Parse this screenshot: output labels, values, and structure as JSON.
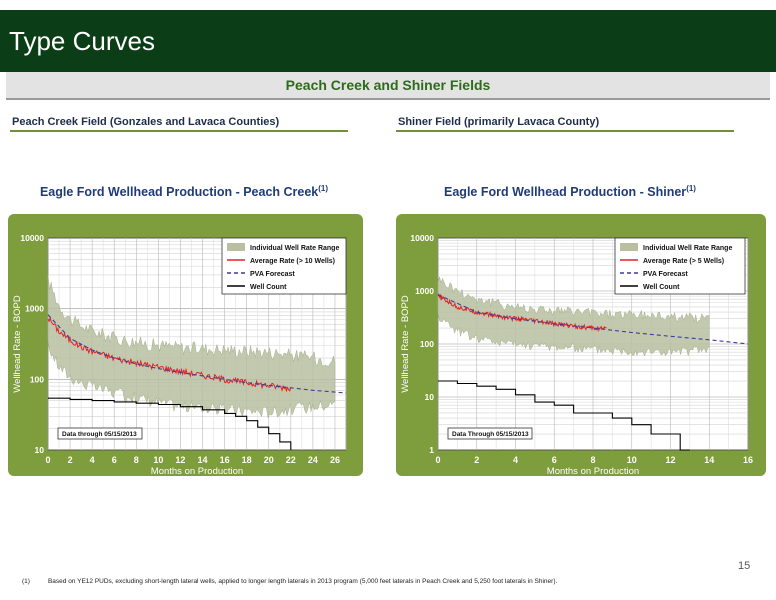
{
  "header": {
    "title": "Type Curves"
  },
  "banner": {
    "text": "Peach Creek and Shiner Fields"
  },
  "left": {
    "field_heading": "Peach Creek Field (Gonzales and Lavaca Counties)",
    "chart_title": "Eagle Ford Wellhead Production - Peach Creek",
    "title_superscript": "(1)"
  },
  "right": {
    "field_heading": "Shiner Field (primarily Lavaca County)",
    "chart_title": "Eagle Ford Wellhead Production - Shiner",
    "title_superscript": "(1)"
  },
  "footer": {
    "page_number": "15",
    "footnote_mark": "(1)",
    "footnote_text": "Based on YE12 PUDs, excluding short-length lateral wells, applied to longer length laterals in 2013 program (5,000 feet laterals in Peach Creek and 5,250 foot laterals in Shiner)."
  },
  "colors": {
    "header_bg": "#0b3d16",
    "chart_frame": "#7e9d3c",
    "band": "#b9bfa0",
    "average": "#e0242a",
    "forecast": "#3a3f9a",
    "well_count": "#000000"
  },
  "chart_data": [
    {
      "type": "line",
      "title": "Eagle Ford Wellhead Production - Peach Creek",
      "xlabel": "Months on Production",
      "ylabel": "Wellhead Rate - BOPD",
      "y_scale": "log",
      "xlim": [
        0,
        27
      ],
      "ylim": [
        10,
        10000
      ],
      "x_ticks": [
        "0",
        "2",
        "4",
        "6",
        "8",
        "10",
        "12",
        "14",
        "16",
        "18",
        "20",
        "22",
        "24",
        "26"
      ],
      "y_ticks": [
        "10",
        "100",
        "1000",
        "10000"
      ],
      "legend": [
        "Individual Well Rate Range",
        "Average Rate (> 10 Wells)",
        "PVA Forecast",
        "Well Count"
      ],
      "legend_position": "top-right",
      "annotation": "Data through 05/15/2013",
      "series": [
        {
          "name": "Individual Well Rate Range",
          "style": "band",
          "x": [
            0,
            1,
            2,
            3,
            4,
            6,
            8,
            10,
            12,
            14,
            16,
            18,
            20,
            22,
            24,
            26
          ],
          "low": [
            300,
            150,
            110,
            90,
            80,
            65,
            55,
            48,
            42,
            40,
            38,
            36,
            35,
            38,
            42,
            45
          ],
          "high": [
            2500,
            1100,
            700,
            560,
            480,
            380,
            330,
            300,
            280,
            270,
            260,
            250,
            240,
            220,
            200,
            180
          ]
        },
        {
          "name": "Average Rate (> 10 Wells)",
          "style": "noisy",
          "x": [
            0,
            1,
            2,
            3,
            4,
            6,
            8,
            10,
            12,
            14,
            16,
            18,
            20,
            22
          ],
          "y": [
            750,
            480,
            360,
            290,
            250,
            200,
            170,
            150,
            130,
            115,
            100,
            90,
            82,
            75
          ]
        },
        {
          "name": "PVA Forecast",
          "style": "dashed",
          "x": [
            0,
            2,
            4,
            6,
            8,
            10,
            12,
            14,
            16,
            18,
            20,
            22,
            24,
            26,
            27
          ],
          "y": [
            820,
            380,
            260,
            200,
            165,
            142,
            125,
            112,
            100,
            90,
            82,
            76,
            70,
            66,
            64
          ]
        },
        {
          "name": "Well Count",
          "style": "step",
          "x": [
            0,
            2,
            4,
            6,
            8,
            10,
            12,
            14,
            16,
            17,
            18,
            19,
            20,
            21,
            22
          ],
          "y": [
            54,
            52,
            50,
            48,
            46,
            44,
            41,
            37,
            33,
            30,
            26,
            21,
            17,
            13,
            10
          ]
        }
      ]
    },
    {
      "type": "line",
      "title": "Eagle Ford Wellhead Production - Shiner",
      "xlabel": "Months on Production",
      "ylabel": "Wellhead Rate - BOPD",
      "y_scale": "log",
      "xlim": [
        0,
        16
      ],
      "ylim": [
        1,
        10000
      ],
      "x_ticks": [
        "0",
        "2",
        "4",
        "6",
        "8",
        "10",
        "12",
        "14",
        "16"
      ],
      "y_ticks": [
        "1",
        "10",
        "100",
        "1000",
        "10000"
      ],
      "legend": [
        "Individual Well Rate Range",
        "Average Rate (> 5 Wells)",
        "PVA Forecast",
        "Well Count"
      ],
      "legend_position": "top-right",
      "annotation": "Data Through 05/15/2013",
      "series": [
        {
          "name": "Individual Well Rate Range",
          "style": "band",
          "x": [
            0,
            1,
            2,
            3,
            4,
            6,
            8,
            10,
            12,
            14
          ],
          "low": [
            350,
            180,
            130,
            110,
            100,
            90,
            80,
            75,
            70,
            80
          ],
          "high": [
            1700,
            1000,
            700,
            580,
            500,
            420,
            380,
            350,
            330,
            300
          ]
        },
        {
          "name": "Average Rate (> 5 Wells)",
          "style": "noisy",
          "x": [
            0,
            1,
            2,
            3,
            4,
            5,
            6,
            7,
            8,
            8.7
          ],
          "y": [
            800,
            500,
            400,
            340,
            300,
            270,
            240,
            220,
            200,
            190
          ]
        },
        {
          "name": "PVA Forecast",
          "style": "dashed",
          "x": [
            0,
            2,
            4,
            6,
            8,
            10,
            12,
            14,
            16
          ],
          "y": [
            850,
            400,
            300,
            240,
            200,
            165,
            140,
            120,
            100
          ]
        },
        {
          "name": "Well Count",
          "style": "step",
          "x": [
            0,
            1,
            2,
            3,
            4,
            5,
            6,
            7,
            8,
            9,
            10,
            11,
            12,
            12.5,
            13
          ],
          "y": [
            20,
            18,
            16,
            14,
            11,
            8,
            7,
            5,
            5,
            4,
            3,
            2,
            2,
            1,
            1
          ]
        }
      ]
    }
  ]
}
